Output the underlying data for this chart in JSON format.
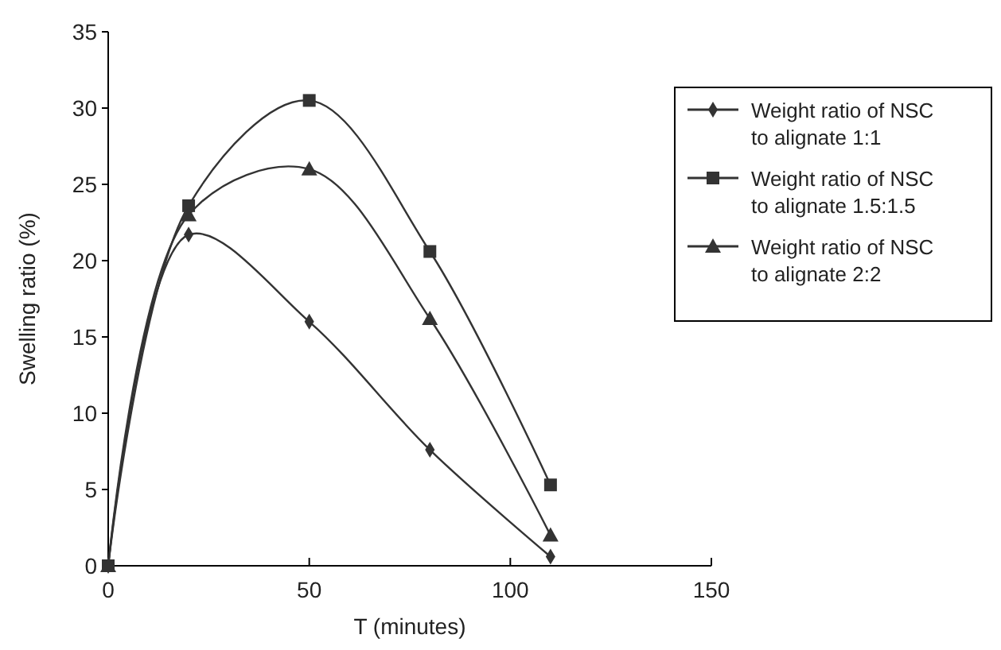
{
  "chart_data": {
    "type": "line",
    "xlabel": "T (minutes)",
    "ylabel": "Swelling ratio (%)",
    "x": [
      0,
      20,
      50,
      80,
      110
    ],
    "series": [
      {
        "name": "Weight ratio of NSC to alignate 1:1",
        "color": "#333333",
        "marker": "diamond",
        "values": [
          0,
          21.7,
          16,
          7.6,
          0.6
        ]
      },
      {
        "name": "Weight ratio of NSC to alignate 1.5:1.5",
        "color": "#333333",
        "marker": "square",
        "values": [
          0,
          23.6,
          30.5,
          20.6,
          5.3
        ]
      },
      {
        "name": "Weight ratio of NSC to alignate 2:2",
        "color": "#333333",
        "marker": "triangle",
        "values": [
          0,
          23,
          26,
          16.2,
          2
        ]
      }
    ],
    "xlim": [
      0,
      150
    ],
    "xticks": [
      0,
      50,
      100,
      150
    ],
    "ylim": [
      0,
      35
    ],
    "yticks": [
      0,
      5,
      10,
      15,
      20,
      25,
      30,
      35
    ],
    "grid": false,
    "legend": "right",
    "line_style": "solid"
  }
}
